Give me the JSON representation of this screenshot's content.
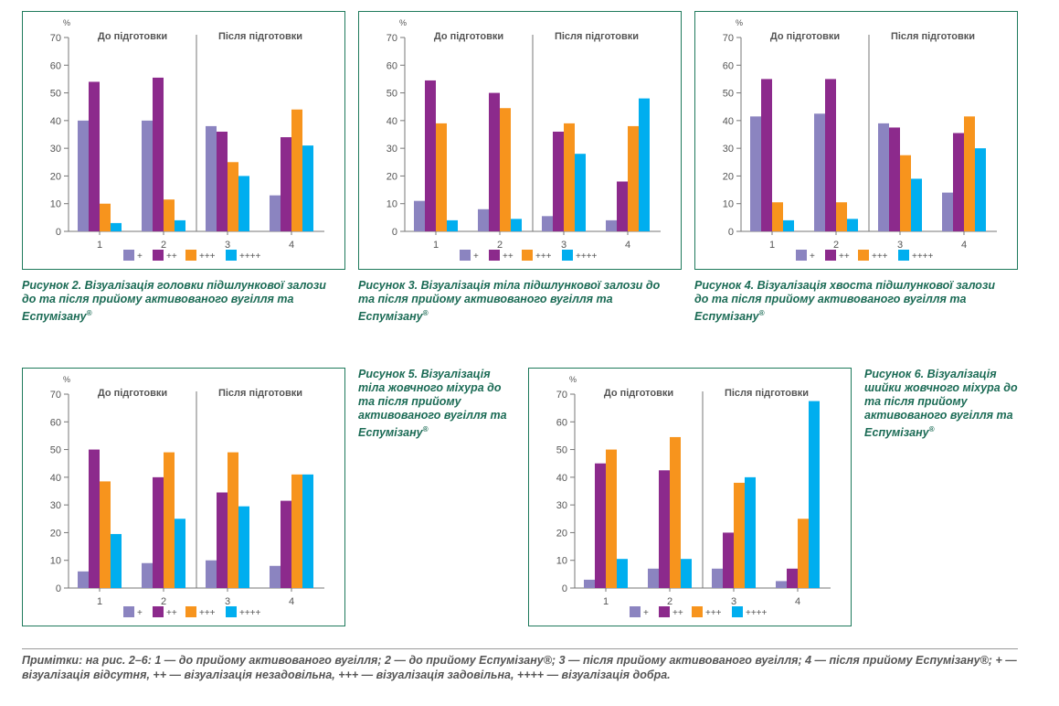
{
  "legend": [
    "+",
    "++",
    "+++",
    "++++"
  ],
  "colors": [
    "#8b84c0",
    "#8c2a8c",
    "#f7941d",
    "#00aeef"
  ],
  "y_unit": "%",
  "section_labels": [
    "До підготовки",
    "Після підготовки"
  ],
  "figures": [
    {
      "caption_prefix": "Рисунок 2.",
      "caption_text": "Візуалізація головки підшлункової залози до та після прийому активованого вугілля та Еспумізану",
      "reg": "®"
    },
    {
      "caption_prefix": "Рисунок 3.",
      "caption_text": "Візуалізація тіла підшлункової залози до та після прийому активованого вугілля та Еспумізану",
      "reg": "®"
    },
    {
      "caption_prefix": "Рисунок 4.",
      "caption_text": "Візуалізація хвоста підшлункової залози до та після прийому активованого вугілля та Еспумізану",
      "reg": "®"
    },
    {
      "caption_prefix": "Рисунок 5.",
      "caption_text": "Візуалізація тіла жовчного міхура до та після прийому активованого вугілля та Еспумізану",
      "reg": "®"
    },
    {
      "caption_prefix": "Рисунок 6.",
      "caption_text": "Візуалізація шийки жовчного міхура до та після прийому активованого вугілля та Еспумізану",
      "reg": "®"
    }
  ],
  "note": {
    "label": "Примітки:",
    "text": "на рис. 2–6: 1 — до прийому активованого вугілля; 2 — до прийому Еспумізану®; 3 — після прийому активованого вугілля; 4 — після прийому Еспумізану®; + — візуалізація відсутня, ++ — візуалізація незадовільна, +++ — візуалізація задовільна, ++++ — візуалізація добра."
  },
  "chart_data": [
    {
      "type": "bar",
      "categories": [
        "1",
        "2",
        "3",
        "4"
      ],
      "ylim": [
        0,
        70
      ],
      "yticks": [
        0,
        10,
        20,
        30,
        40,
        50,
        60,
        70
      ],
      "ylabel": "%",
      "series": [
        {
          "name": "+",
          "values": [
            40,
            40,
            38,
            13
          ]
        },
        {
          "name": "++",
          "values": [
            54,
            55.5,
            36,
            34
          ]
        },
        {
          "name": "+++",
          "values": [
            10,
            11.5,
            25,
            44
          ]
        },
        {
          "name": "++++",
          "values": [
            3,
            4,
            20,
            31
          ]
        }
      ]
    },
    {
      "type": "bar",
      "categories": [
        "1",
        "2",
        "3",
        "4"
      ],
      "ylim": [
        0,
        70
      ],
      "yticks": [
        0,
        10,
        20,
        30,
        40,
        50,
        60,
        70
      ],
      "ylabel": "%",
      "series": [
        {
          "name": "+",
          "values": [
            11,
            8,
            5.5,
            4
          ]
        },
        {
          "name": "++",
          "values": [
            54.5,
            50,
            36,
            18
          ]
        },
        {
          "name": "+++",
          "values": [
            39,
            44.5,
            39,
            38
          ]
        },
        {
          "name": "++++",
          "values": [
            4,
            4.5,
            28,
            48
          ]
        }
      ]
    },
    {
      "type": "bar",
      "categories": [
        "1",
        "2",
        "3",
        "4"
      ],
      "ylim": [
        0,
        70
      ],
      "yticks": [
        0,
        10,
        20,
        30,
        40,
        50,
        60,
        70
      ],
      "ylabel": "%",
      "series": [
        {
          "name": "+",
          "values": [
            41.5,
            42.5,
            39,
            14
          ]
        },
        {
          "name": "++",
          "values": [
            55,
            55,
            37.5,
            35.5
          ]
        },
        {
          "name": "+++",
          "values": [
            10.5,
            10.5,
            27.5,
            41.5
          ]
        },
        {
          "name": "++++",
          "values": [
            4,
            4.5,
            19,
            30
          ]
        }
      ]
    },
    {
      "type": "bar",
      "categories": [
        "1",
        "2",
        "3",
        "4"
      ],
      "ylim": [
        0,
        70
      ],
      "yticks": [
        0,
        10,
        20,
        30,
        40,
        50,
        60,
        70
      ],
      "ylabel": "%",
      "series": [
        {
          "name": "+",
          "values": [
            6,
            9,
            10,
            8
          ]
        },
        {
          "name": "++",
          "values": [
            50,
            40,
            34.5,
            31.5
          ]
        },
        {
          "name": "+++",
          "values": [
            38.5,
            49,
            49,
            41
          ]
        },
        {
          "name": "++++",
          "values": [
            19.5,
            25,
            29.5,
            41
          ]
        }
      ]
    },
    {
      "type": "bar",
      "categories": [
        "1",
        "2",
        "3",
        "4"
      ],
      "ylim": [
        0,
        70
      ],
      "yticks": [
        0,
        10,
        20,
        30,
        40,
        50,
        60,
        70
      ],
      "ylabel": "%",
      "series": [
        {
          "name": "+",
          "values": [
            3,
            7,
            7,
            2.5
          ]
        },
        {
          "name": "++",
          "values": [
            45,
            42.5,
            20,
            7
          ]
        },
        {
          "name": "+++",
          "values": [
            50,
            54.5,
            38,
            25
          ]
        },
        {
          "name": "++++",
          "values": [
            10.5,
            10.5,
            40,
            67.5
          ]
        }
      ]
    }
  ]
}
